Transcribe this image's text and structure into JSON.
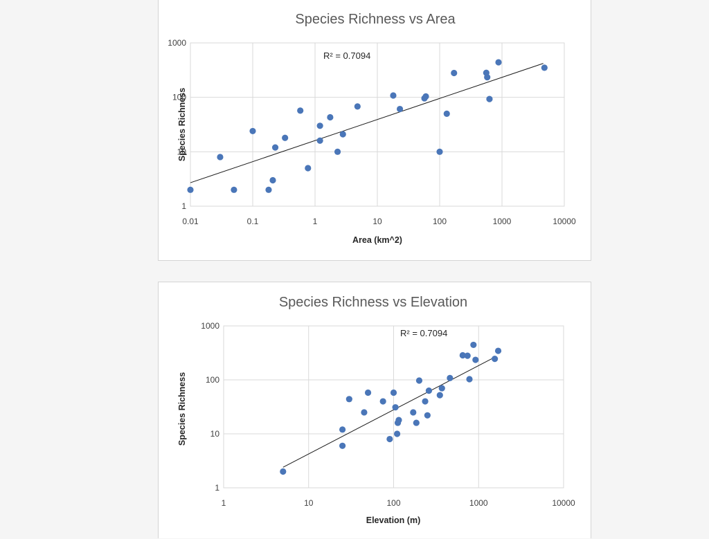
{
  "colors": {
    "marker": "#4a76b8",
    "trendline": "#1a1a1a",
    "grid": "#d9d9d9"
  },
  "chart_data": [
    {
      "type": "scatter",
      "title": "Species Richness vs Area",
      "xlabel": "Area (km^2)",
      "ylabel": "Species  Richness",
      "xscale": "log",
      "yscale": "log",
      "xlim": [
        0.01,
        10000
      ],
      "ylim": [
        1,
        1000
      ],
      "xticks": [
        "0.01",
        "0.1",
        "1",
        "10",
        "100",
        "1000",
        "10000"
      ],
      "yticks": [
        "1",
        "10",
        "100",
        "1000"
      ],
      "grid": true,
      "trendline": {
        "type": "power",
        "r2_label": "R² = 0.7094",
        "start": [
          0.01,
          2.7
        ],
        "end": [
          4600,
          420
        ]
      },
      "points": [
        [
          0.01,
          2
        ],
        [
          0.03,
          8
        ],
        [
          0.05,
          2
        ],
        [
          0.1,
          24
        ],
        [
          0.18,
          2
        ],
        [
          0.21,
          3
        ],
        [
          0.23,
          12
        ],
        [
          0.33,
          18
        ],
        [
          0.58,
          57
        ],
        [
          0.77,
          5
        ],
        [
          1.2,
          16
        ],
        [
          1.2,
          30
        ],
        [
          1.75,
          43
        ],
        [
          2.3,
          10
        ],
        [
          2.8,
          21
        ],
        [
          4.8,
          68
        ],
        [
          18,
          108
        ],
        [
          23,
          61
        ],
        [
          57,
          96
        ],
        [
          60,
          104
        ],
        [
          100,
          10
        ],
        [
          130,
          50
        ],
        [
          170,
          280
        ],
        [
          560,
          282
        ],
        [
          580,
          234
        ],
        [
          630,
          93
        ],
        [
          880,
          440
        ],
        [
          4800,
          350
        ]
      ]
    },
    {
      "type": "scatter",
      "title": "Species Richness vs Elevation",
      "xlabel": "Elevation  (m)",
      "ylabel": "Species  Richness",
      "xscale": "log",
      "yscale": "log",
      "xlim": [
        1,
        10000
      ],
      "ylim": [
        1,
        1000
      ],
      "xticks": [
        "1",
        "10",
        "100",
        "1000",
        "10000"
      ],
      "yticks": [
        "1",
        "10",
        "100",
        "1000"
      ],
      "grid": true,
      "trendline": {
        "type": "power",
        "r2_label": "R² = 0.7094",
        "start": [
          5,
          2.4
        ],
        "end": [
          1600,
          270
        ]
      },
      "points": [
        [
          5,
          2
        ],
        [
          25,
          6
        ],
        [
          25,
          12
        ],
        [
          30,
          44
        ],
        [
          45,
          25
        ],
        [
          50,
          58
        ],
        [
          75,
          40
        ],
        [
          90,
          8
        ],
        [
          100,
          58
        ],
        [
          105,
          31
        ],
        [
          110,
          10
        ],
        [
          112,
          16
        ],
        [
          115,
          18
        ],
        [
          170,
          25
        ],
        [
          185,
          16
        ],
        [
          200,
          97
        ],
        [
          235,
          40
        ],
        [
          250,
          22
        ],
        [
          260,
          63
        ],
        [
          350,
          52
        ],
        [
          370,
          70
        ],
        [
          460,
          108
        ],
        [
          650,
          285
        ],
        [
          740,
          280
        ],
        [
          780,
          103
        ],
        [
          870,
          445
        ],
        [
          920,
          235
        ],
        [
          1550,
          245
        ],
        [
          1700,
          345
        ]
      ]
    }
  ]
}
